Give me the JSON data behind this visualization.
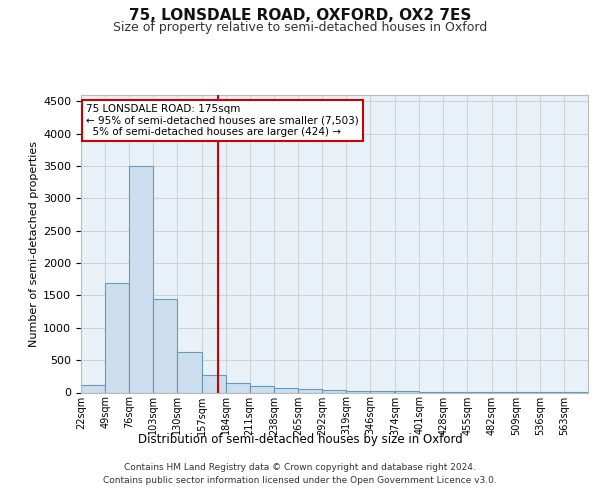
{
  "title": "75, LONSDALE ROAD, OXFORD, OX2 7ES",
  "subtitle": "Size of property relative to semi-detached houses in Oxford",
  "xlabel": "Distribution of semi-detached houses by size in Oxford",
  "ylabel": "Number of semi-detached properties",
  "footer_line1": "Contains HM Land Registry data © Crown copyright and database right 2024.",
  "footer_line2": "Contains public sector information licensed under the Open Government Licence v3.0.",
  "property_label": "75 LONSDALE ROAD: 175sqm",
  "smaller_pct": 95,
  "smaller_count": 7503,
  "larger_pct": 5,
  "larger_count": 424,
  "bin_labels": [
    "22sqm",
    "49sqm",
    "76sqm",
    "103sqm",
    "130sqm",
    "157sqm",
    "184sqm",
    "211sqm",
    "238sqm",
    "265sqm",
    "292sqm",
    "319sqm",
    "346sqm",
    "374sqm",
    "401sqm",
    "428sqm",
    "455sqm",
    "482sqm",
    "509sqm",
    "536sqm",
    "563sqm"
  ],
  "bin_left_edges": [
    22,
    49,
    76,
    103,
    130,
    157,
    184,
    211,
    238,
    265,
    292,
    319,
    346,
    374,
    401,
    428,
    455,
    482,
    509,
    536,
    563
  ],
  "bin_width": 27,
  "bar_heights": [
    120,
    1700,
    3500,
    1450,
    620,
    270,
    150,
    100,
    75,
    55,
    40,
    30,
    25,
    20,
    15,
    12,
    10,
    8,
    6,
    5,
    4
  ],
  "bar_color": "#ccdded",
  "bar_edge_color": "#6699bb",
  "grid_color": "#cccccc",
  "vline_color": "#cc0000",
  "vline_x": 175,
  "annotation_box_color": "#cc0000",
  "ylim": [
    0,
    4600
  ],
  "yticks": [
    0,
    500,
    1000,
    1500,
    2000,
    2500,
    3000,
    3500,
    4000,
    4500
  ],
  "background_color": "#ffffff",
  "plot_bg_color": "#e8f0f8"
}
